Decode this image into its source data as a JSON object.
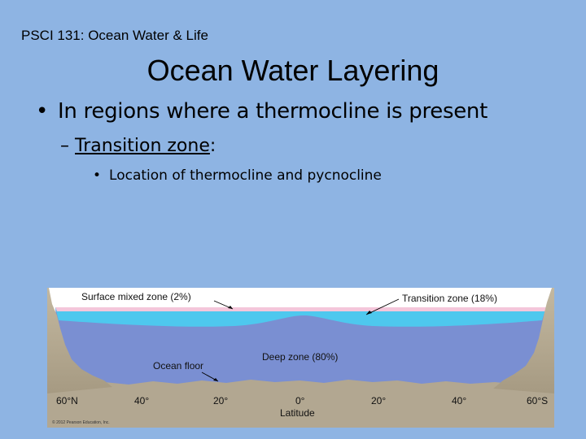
{
  "header": {
    "course": "PSCI 131: Ocean Water & Life"
  },
  "slide": {
    "title": "Ocean Water Layering",
    "bullet_level1": "In regions where a thermocline is present",
    "bullet_level2": {
      "dash": "–",
      "term": "Transition zone",
      "suffix": ":"
    },
    "bullet_level3": "Location of thermocline and pycnocline",
    "bullet_glyph": "•"
  },
  "figure": {
    "labels": {
      "surface": "Surface mixed zone (2%)",
      "transition": "Transition zone (18%)",
      "deep": "Deep zone (80%)",
      "floor": "Ocean floor",
      "axis": "Latitude"
    },
    "ticks": [
      "60°N",
      "40°",
      "20°",
      "0°",
      "20°",
      "40°",
      "60°S"
    ],
    "copyright": "© 2012 Pearson Education, Inc.",
    "colors": {
      "surface": "#f4c6da",
      "transition": "#4ec8ee",
      "deep": "#7a8fd2",
      "land": "#b2a791",
      "background": "#8eb4e3"
    }
  }
}
